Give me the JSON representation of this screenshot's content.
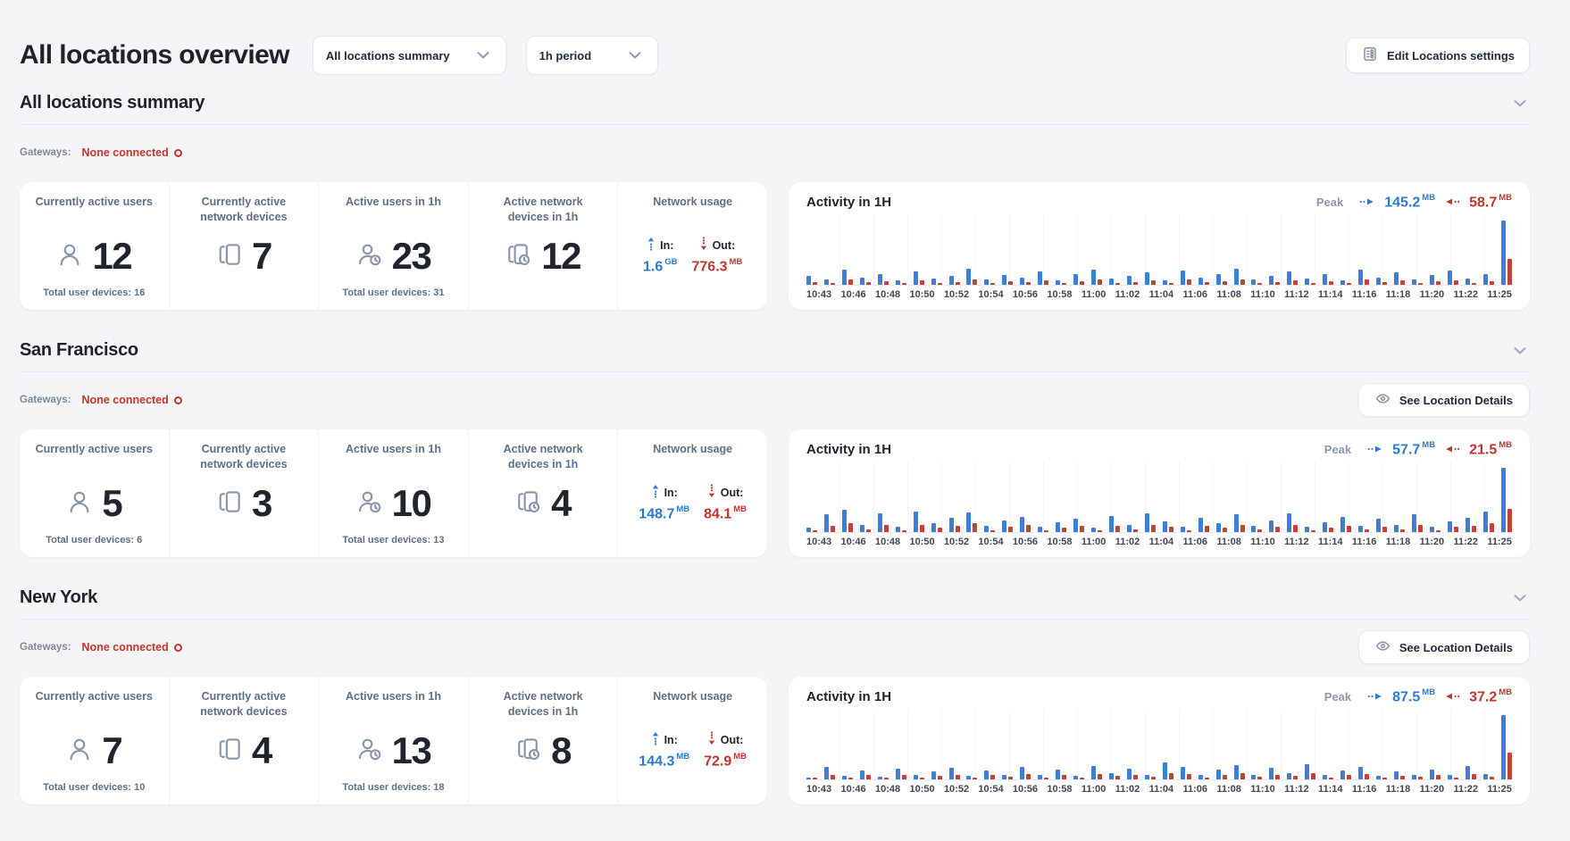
{
  "header": {
    "title": "All locations overview",
    "dropdowns": [
      {
        "value": "All locations summary"
      },
      {
        "value": "1h period"
      }
    ],
    "edit_button": "Edit Locations settings"
  },
  "labels": {
    "gateways": "Gateways:",
    "activity_title": "Activity in 1H",
    "peak": "Peak",
    "in": "In:",
    "out": "Out:",
    "see_location_details": "See Location Details"
  },
  "colors": {
    "accent_blue": "#2b7ad2",
    "accent_red": "#c0362c",
    "bar_blue": "#3e7ed8",
    "bar_red": "#c14238",
    "page_bg": "#f5f5f7"
  },
  "sections": [
    {
      "heading": "All locations summary",
      "gateways_status": "None connected",
      "show_details_button": false,
      "stats": [
        {
          "label": "Currently active users",
          "icon": "user",
          "value": "12",
          "footnote": "Total user devices: 16"
        },
        {
          "label": "Currently active network devices",
          "icon": "devices",
          "value": "7",
          "footnote": ""
        },
        {
          "label": "Active users in 1h",
          "icon": "user-clock",
          "value": "23",
          "footnote": "Total user devices: 31"
        },
        {
          "label": "Active network devices in 1h",
          "icon": "devices-clock",
          "value": "12",
          "footnote": ""
        }
      ],
      "network_usage": {
        "label": "Network usage",
        "in_value": "1.6",
        "in_unit": "GB",
        "out_value": "776.3",
        "out_unit": "MB"
      }
    },
    {
      "heading": "San Francisco",
      "gateways_status": "None connected",
      "show_details_button": true,
      "stats": [
        {
          "label": "Currently active users",
          "icon": "user",
          "value": "5",
          "footnote": "Total user devices: 6"
        },
        {
          "label": "Currently active network devices",
          "icon": "devices",
          "value": "3",
          "footnote": ""
        },
        {
          "label": "Active users in 1h",
          "icon": "user-clock",
          "value": "10",
          "footnote": "Total user devices: 13"
        },
        {
          "label": "Active network devices in 1h",
          "icon": "devices-clock",
          "value": "4",
          "footnote": ""
        }
      ],
      "network_usage": {
        "label": "Network usage",
        "in_value": "148.7",
        "in_unit": "MB",
        "out_value": "84.1",
        "out_unit": "MB"
      }
    },
    {
      "heading": "New York",
      "gateways_status": "None connected",
      "show_details_button": true,
      "stats": [
        {
          "label": "Currently active users",
          "icon": "user",
          "value": "7",
          "footnote": "Total user devices: 10"
        },
        {
          "label": "Currently active network devices",
          "icon": "devices",
          "value": "4",
          "footnote": ""
        },
        {
          "label": "Active users in 1h",
          "icon": "user-clock",
          "value": "13",
          "footnote": "Total user devices: 18"
        },
        {
          "label": "Active network devices in 1h",
          "icon": "devices-clock",
          "value": "8",
          "footnote": ""
        }
      ],
      "network_usage": {
        "label": "Network usage",
        "in_value": "144.3",
        "in_unit": "MB",
        "out_value": "72.9",
        "out_unit": "MB"
      }
    }
  ],
  "chart_data": [
    {
      "type": "bar",
      "title": "Activity in 1H",
      "location": "All locations summary",
      "legend": [
        "In",
        "Out"
      ],
      "unit": "MB",
      "x": [
        "10:43",
        "10:46",
        "10:48",
        "10:50",
        "10:52",
        "10:54",
        "10:56",
        "10:58",
        "11:00",
        "11:02",
        "11:04",
        "11:06",
        "11:08",
        "11:10",
        "11:12",
        "11:14",
        "11:16",
        "11:18",
        "11:20",
        "11:22",
        "11:25"
      ],
      "peak": {
        "in": "145.2",
        "in_unit": "MB",
        "out": "58.7",
        "out_unit": "MB"
      },
      "series": [
        {
          "name": "In",
          "color": "#3e7ed8",
          "values": [
            20,
            12,
            34,
            16,
            24,
            10,
            30,
            14,
            20,
            36,
            12,
            22,
            16,
            30,
            10,
            24,
            34,
            14,
            20,
            28,
            10,
            32,
            16,
            24,
            36,
            12,
            20,
            30,
            14,
            24,
            10,
            34,
            16,
            28,
            12,
            22,
            32,
            14,
            24,
            145.2
          ]
        },
        {
          "name": "Out",
          "color": "#c14238",
          "values": [
            7,
            5,
            12,
            6,
            9,
            4,
            11,
            5,
            7,
            13,
            4,
            8,
            6,
            11,
            4,
            9,
            12,
            5,
            7,
            10,
            4,
            12,
            6,
            9,
            13,
            5,
            7,
            11,
            5,
            9,
            4,
            12,
            6,
            10,
            5,
            8,
            11,
            5,
            9,
            58.7
          ]
        }
      ]
    },
    {
      "type": "bar",
      "title": "Activity in 1H",
      "location": "San Francisco",
      "legend": [
        "In",
        "Out"
      ],
      "unit": "MB",
      "x": [
        "10:43",
        "10:46",
        "10:48",
        "10:50",
        "10:52",
        "10:54",
        "10:56",
        "10:58",
        "11:00",
        "11:02",
        "11:04",
        "11:06",
        "11:08",
        "11:10",
        "11:12",
        "11:14",
        "11:16",
        "11:18",
        "11:20",
        "11:22",
        "11:25"
      ],
      "peak": {
        "in": "57.7",
        "in_unit": "MB",
        "out": "21.5",
        "out_unit": "MB"
      },
      "series": [
        {
          "name": "In",
          "color": "#3e7ed8",
          "values": [
            4,
            16,
            20,
            7,
            17,
            5,
            19,
            8,
            13,
            18,
            6,
            11,
            14,
            5,
            9,
            12,
            4,
            15,
            7,
            17,
            10,
            5,
            13,
            8,
            16,
            6,
            11,
            17,
            5,
            9,
            14,
            6,
            12,
            7,
            16,
            5,
            10,
            13,
            19,
            57.7
          ]
        },
        {
          "name": "Out",
          "color": "#c14238",
          "values": [
            2,
            6,
            8,
            3,
            7,
            2,
            7,
            4,
            6,
            8,
            2,
            5,
            7,
            2,
            4,
            6,
            2,
            6,
            3,
            7,
            5,
            2,
            6,
            4,
            7,
            3,
            5,
            7,
            2,
            4,
            6,
            3,
            5,
            3,
            7,
            2,
            5,
            6,
            8,
            21.5
          ]
        }
      ]
    },
    {
      "type": "bar",
      "title": "Activity in 1H",
      "location": "New York",
      "legend": [
        "In",
        "Out"
      ],
      "unit": "MB",
      "x": [
        "10:43",
        "10:46",
        "10:48",
        "10:50",
        "10:52",
        "10:54",
        "10:56",
        "10:58",
        "11:00",
        "11:02",
        "11:04",
        "11:06",
        "11:08",
        "11:10",
        "11:12",
        "11:14",
        "11:16",
        "11:18",
        "11:20",
        "11:22",
        "11:25"
      ],
      "peak": {
        "in": "87.5",
        "in_unit": "MB",
        "out": "37.2",
        "out_unit": "MB"
      },
      "series": [
        {
          "name": "In",
          "color": "#3e7ed8",
          "values": [
            3,
            17,
            5,
            13,
            4,
            15,
            6,
            11,
            16,
            5,
            13,
            7,
            17,
            6,
            14,
            5,
            19,
            9,
            15,
            7,
            23,
            18,
            6,
            14,
            20,
            7,
            16,
            9,
            21,
            6,
            13,
            17,
            5,
            11,
            7,
            14,
            6,
            19,
            8,
            87.5
          ]
        },
        {
          "name": "Out",
          "color": "#c14238",
          "values": [
            2,
            7,
            3,
            6,
            2,
            7,
            3,
            5,
            7,
            3,
            6,
            4,
            8,
            3,
            7,
            3,
            8,
            5,
            7,
            4,
            9,
            8,
            3,
            7,
            9,
            4,
            7,
            5,
            9,
            3,
            6,
            8,
            3,
            5,
            4,
            7,
            3,
            8,
            4,
            37.2
          ]
        }
      ]
    }
  ]
}
